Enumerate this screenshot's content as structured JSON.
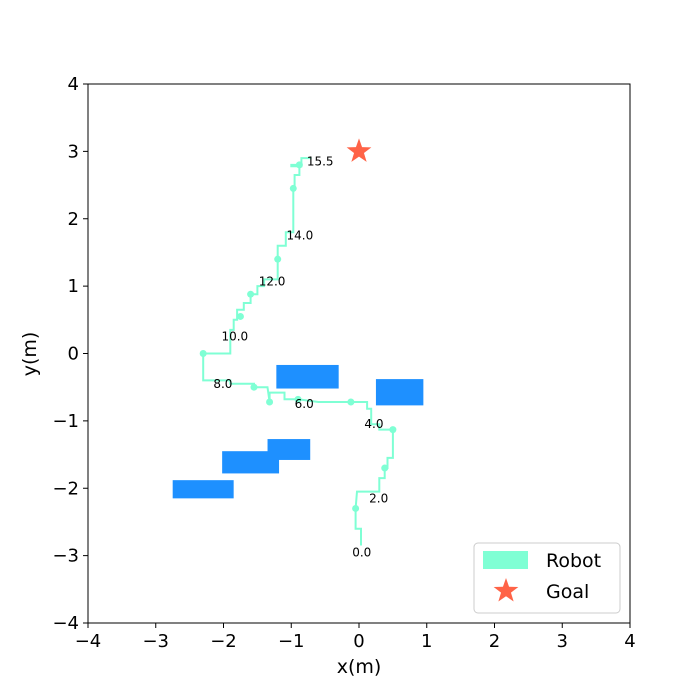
{
  "chart_data": {
    "type": "line",
    "xlabel": "x(m)",
    "ylabel": "y(m)",
    "xlim": [
      -4,
      4
    ],
    "ylim": [
      -4,
      4
    ],
    "xticks": [
      "−4",
      "−3",
      "−2",
      "−1",
      "0",
      "1",
      "2",
      "3",
      "4"
    ],
    "yticks": [
      "−4",
      "−3",
      "−2",
      "−1",
      "0",
      "1",
      "2",
      "3",
      "4"
    ],
    "grid": false,
    "legend": {
      "placement": "lower-right",
      "entries": [
        {
          "label": "Robot",
          "color": "#7fffd4",
          "marker": "patch"
        },
        {
          "label": "Goal",
          "color": "#ff6347",
          "marker": "star"
        }
      ]
    },
    "robot_path": {
      "name": "Robot",
      "color": "#7fffd4",
      "points": [
        [
          0.03,
          -2.85
        ],
        [
          0.03,
          -2.6
        ],
        [
          -0.05,
          -2.6
        ],
        [
          -0.05,
          -2.3
        ],
        [
          -0.03,
          -2.05
        ],
        [
          0.3,
          -2.05
        ],
        [
          0.3,
          -1.85
        ],
        [
          0.38,
          -1.85
        ],
        [
          0.38,
          -1.7
        ],
        [
          0.42,
          -1.7
        ],
        [
          0.42,
          -1.55
        ],
        [
          0.5,
          -1.55
        ],
        [
          0.5,
          -1.13
        ],
        [
          0.3,
          -1.13
        ],
        [
          0.3,
          -1.05
        ],
        [
          0.18,
          -1.05
        ],
        [
          0.18,
          -0.82
        ],
        [
          0.12,
          -0.82
        ],
        [
          0.12,
          -0.72
        ],
        [
          -0.12,
          -0.72
        ],
        [
          -0.4,
          -0.72
        ],
        [
          -0.6,
          -0.72
        ],
        [
          -0.9,
          -0.68
        ],
        [
          -1.1,
          -0.68
        ],
        [
          -1.1,
          -0.58
        ],
        [
          -1.32,
          -0.58
        ],
        [
          -1.32,
          -0.72
        ],
        [
          -1.35,
          -0.5
        ],
        [
          -1.55,
          -0.5
        ],
        [
          -1.55,
          -0.45
        ],
        [
          -1.9,
          -0.45
        ],
        [
          -1.9,
          -0.4
        ],
        [
          -2.3,
          -0.4
        ],
        [
          -2.3,
          0.0
        ],
        [
          -1.9,
          0.0
        ],
        [
          -1.9,
          0.35
        ],
        [
          -1.85,
          0.35
        ],
        [
          -1.85,
          0.5
        ],
        [
          -1.8,
          0.5
        ],
        [
          -1.8,
          0.65
        ],
        [
          -1.7,
          0.65
        ],
        [
          -1.7,
          0.75
        ],
        [
          -1.6,
          0.75
        ],
        [
          -1.6,
          0.88
        ],
        [
          -1.5,
          0.88
        ],
        [
          -1.5,
          1.0
        ],
        [
          -1.4,
          1.0
        ],
        [
          -1.4,
          1.1
        ],
        [
          -1.2,
          1.1
        ],
        [
          -1.2,
          1.4
        ],
        [
          -1.2,
          1.6
        ],
        [
          -1.08,
          1.6
        ],
        [
          -1.08,
          1.8
        ],
        [
          -0.97,
          1.8
        ],
        [
          -0.97,
          2.45
        ],
        [
          -0.95,
          2.45
        ],
        [
          -0.95,
          2.65
        ],
        [
          -0.88,
          2.65
        ],
        [
          -0.88,
          2.8
        ],
        [
          -1.0,
          2.8
        ],
        [
          -1.0,
          2.78
        ],
        [
          -0.85,
          2.78
        ],
        [
          -0.85,
          2.9
        ],
        [
          -0.7,
          2.9
        ]
      ],
      "markers": [
        [
          -0.05,
          -2.3
        ],
        [
          0.38,
          -1.7
        ],
        [
          0.5,
          -1.13
        ],
        [
          -0.12,
          -0.72
        ],
        [
          -0.9,
          -0.68
        ],
        [
          -1.32,
          -0.72
        ],
        [
          -1.55,
          -0.5
        ],
        [
          -2.3,
          0.0
        ],
        [
          -1.75,
          0.55
        ],
        [
          -1.6,
          0.88
        ],
        [
          -1.2,
          1.4
        ],
        [
          -0.97,
          2.45
        ],
        [
          -0.88,
          2.8
        ]
      ]
    },
    "time_labels": [
      {
        "text": "0.0",
        "x": -0.1,
        "y": -2.95
      },
      {
        "text": "2.0",
        "x": 0.15,
        "y": -2.15
      },
      {
        "text": "4.0",
        "x": 0.08,
        "y": -1.05
      },
      {
        "text": "6.0",
        "x": -0.95,
        "y": -0.75
      },
      {
        "text": "8.0",
        "x": -2.15,
        "y": -0.45
      },
      {
        "text": "10.0",
        "x": -2.03,
        "y": 0.25
      },
      {
        "text": "12.0",
        "x": -1.48,
        "y": 1.07
      },
      {
        "text": "14.0",
        "x": -1.07,
        "y": 1.75
      },
      {
        "text": "15.5",
        "x": -0.77,
        "y": 2.85
      }
    ],
    "goal": {
      "name": "Goal",
      "x": 0.0,
      "y": 3.0,
      "color": "#ff6347"
    },
    "obstacles": {
      "color": "#1e90ff",
      "rects": [
        {
          "x0": -1.22,
          "x1": -0.3,
          "y0": -0.52,
          "y1": -0.17
        },
        {
          "x0": 0.25,
          "x1": 0.95,
          "y0": -0.77,
          "y1": -0.38
        },
        {
          "x0": -1.35,
          "x1": -0.72,
          "y0": -1.58,
          "y1": -1.27
        },
        {
          "x0": -2.02,
          "x1": -1.18,
          "y0": -1.78,
          "y1": -1.45
        },
        {
          "x0": -2.75,
          "x1": -1.85,
          "y0": -2.15,
          "y1": -1.88
        }
      ]
    }
  }
}
